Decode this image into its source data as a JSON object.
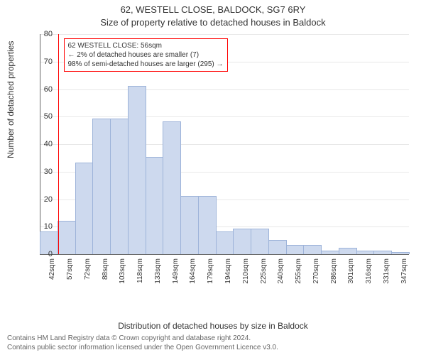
{
  "title_main": "62, WESTELL CLOSE, BALDOCK, SG7 6RY",
  "title_sub": "Size of property relative to detached houses in Baldock",
  "y_axis_label": "Number of detached properties",
  "x_axis_label": "Distribution of detached houses by size in Baldock",
  "footer_line1": "Contains HM Land Registry data © Crown copyright and database right 2024.",
  "footer_line2": "Contains public sector information licensed under the Open Government Licence v3.0.",
  "chart": {
    "type": "histogram",
    "ylim": [
      0,
      80
    ],
    "ytick_step": 10,
    "bar_color": "#cdd9ee",
    "bar_border_color": "#9db3d9",
    "grid_color": "#e8e8e8",
    "axis_color": "#666666",
    "marker_line_color": "#ff0000",
    "annotation_border_color": "#ff0000",
    "annotation_text_color": "#333333",
    "categories": [
      "42sqm",
      "57sqm",
      "72sqm",
      "88sqm",
      "103sqm",
      "118sqm",
      "133sqm",
      "149sqm",
      "164sqm",
      "179sqm",
      "194sqm",
      "210sqm",
      "225sqm",
      "240sqm",
      "255sqm",
      "270sqm",
      "286sqm",
      "301sqm",
      "316sqm",
      "331sqm",
      "347sqm"
    ],
    "values": [
      8,
      12,
      33,
      49,
      49,
      61,
      35,
      48,
      21,
      21,
      8,
      9,
      9,
      5,
      3,
      3,
      1,
      2,
      1,
      1,
      0.5
    ],
    "marker_position": 1.03,
    "annotation": {
      "line1": "62 WESTELL CLOSE: 56sqm",
      "line2": "← 2% of detached houses are smaller (7)",
      "line3": "98% of semi-detached houses are larger (295) →"
    }
  }
}
